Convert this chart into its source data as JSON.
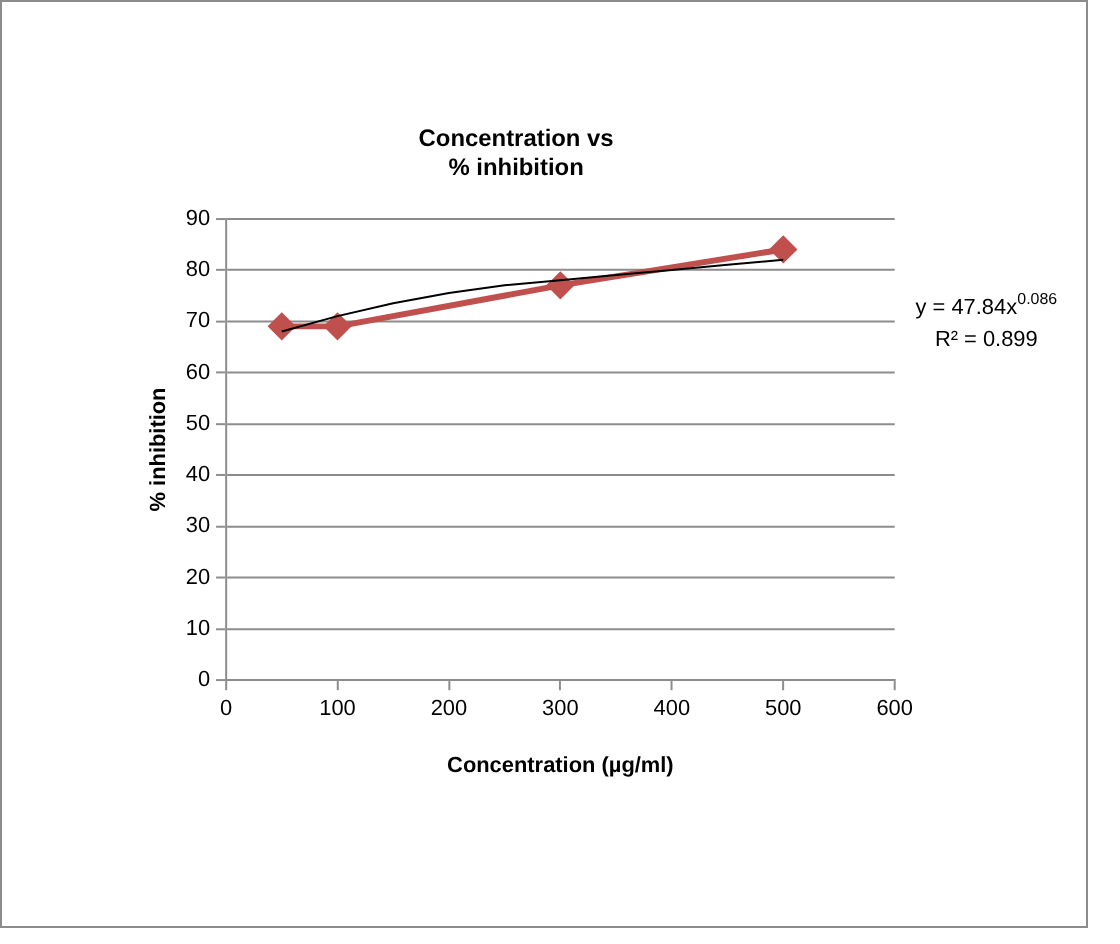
{
  "chart_data": {
    "type": "scatter",
    "title": "Concentration vs\n% inhibition",
    "xlabel": "Concentration (µg/ml)",
    "ylabel": "% inhibition",
    "xlim": [
      0,
      600
    ],
    "xticks": [
      0,
      100,
      200,
      300,
      400,
      500,
      600
    ],
    "ylim": [
      0,
      90
    ],
    "yticks": [
      0,
      10,
      20,
      30,
      40,
      50,
      60,
      70,
      80,
      90
    ],
    "grid": "y",
    "legend": false,
    "series": [
      {
        "type": "line",
        "color": "#c0504d",
        "marker": "diamond",
        "x": [
          50,
          100,
          300,
          500
        ],
        "values": [
          69,
          69,
          77,
          84
        ]
      },
      {
        "type": "line",
        "color": "#000000",
        "marker": "none",
        "x": [
          50,
          100,
          150,
          200,
          250,
          300,
          350,
          400,
          450,
          500
        ],
        "values": [
          68,
          71,
          73.5,
          75.5,
          77,
          78,
          79,
          80,
          81,
          82
        ]
      }
    ],
    "annotations": [
      "y = 47.84x$^{0.086}$",
      "R² = 0.899"
    ]
  }
}
